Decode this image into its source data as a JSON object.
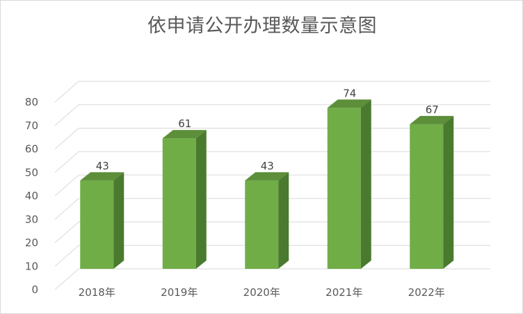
{
  "chart_data": {
    "type": "bar",
    "title": "依申请公开办理数量示意图",
    "categories": [
      "2018年",
      "2019年",
      "2020年",
      "2021年",
      "2022年"
    ],
    "values": [
      43,
      61,
      43,
      74,
      67
    ],
    "ylim": [
      0,
      80
    ],
    "yticks": [
      0,
      10,
      20,
      30,
      40,
      50,
      60,
      70,
      80
    ],
    "grid": true,
    "legend": "none",
    "data_labels": true,
    "colors": {
      "bar_front": "#70ad47",
      "bar_side": "#4a7a2e",
      "bar_top": "#5d8f3a",
      "grid": "#d9d9d9",
      "text": "#595959"
    }
  }
}
